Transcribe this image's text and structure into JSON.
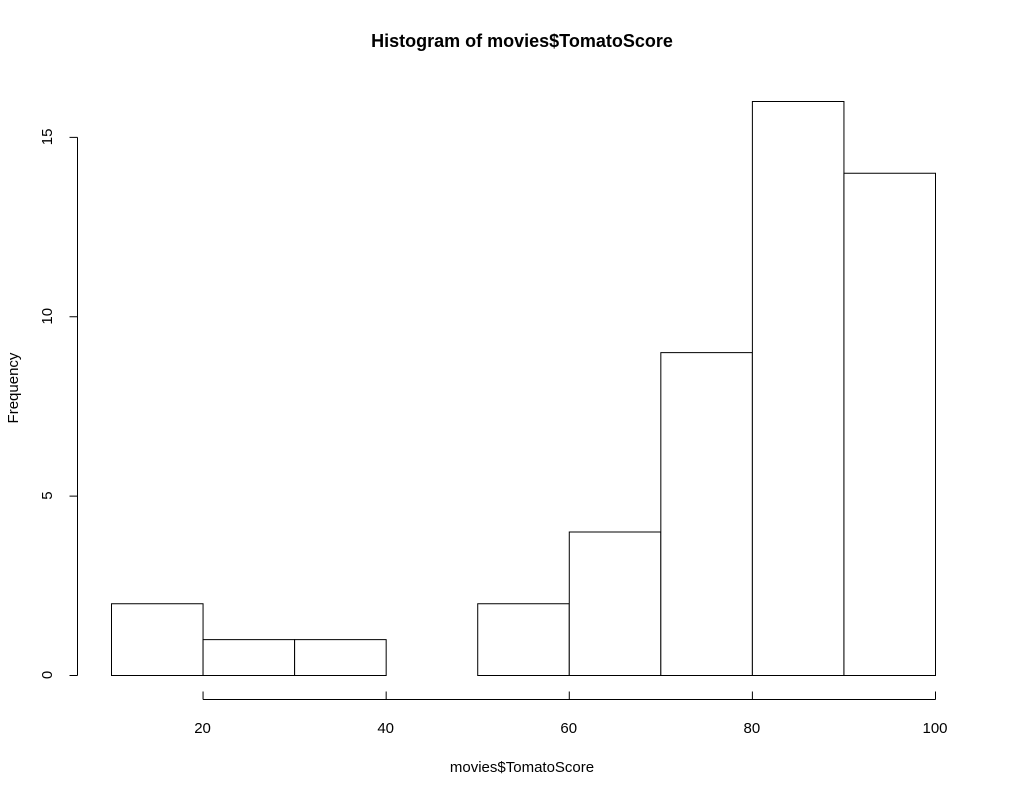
{
  "chart_data": {
    "type": "bar",
    "title": "Histogram of movies$TomatoScore",
    "xlabel": "movies$TomatoScore",
    "ylabel": "Frequency",
    "bins": [
      {
        "from": 10,
        "to": 20,
        "count": 2
      },
      {
        "from": 20,
        "to": 30,
        "count": 1
      },
      {
        "from": 30,
        "to": 40,
        "count": 1
      },
      {
        "from": 40,
        "to": 50,
        "count": 0
      },
      {
        "from": 50,
        "to": 60,
        "count": 2
      },
      {
        "from": 60,
        "to": 70,
        "count": 4
      },
      {
        "from": 70,
        "to": 80,
        "count": 9
      },
      {
        "from": 80,
        "to": 90,
        "count": 16
      },
      {
        "from": 90,
        "to": 100,
        "count": 14
      }
    ],
    "x_ticks": [
      "20",
      "40",
      "60",
      "80",
      "100"
    ],
    "y_ticks": [
      "0",
      "5",
      "10",
      "15"
    ],
    "xlim": [
      10,
      100
    ],
    "ylim": [
      0,
      16
    ],
    "grid": false,
    "colors": {
      "bar_fill": "#ffffff",
      "bar_stroke": "#000000"
    }
  }
}
